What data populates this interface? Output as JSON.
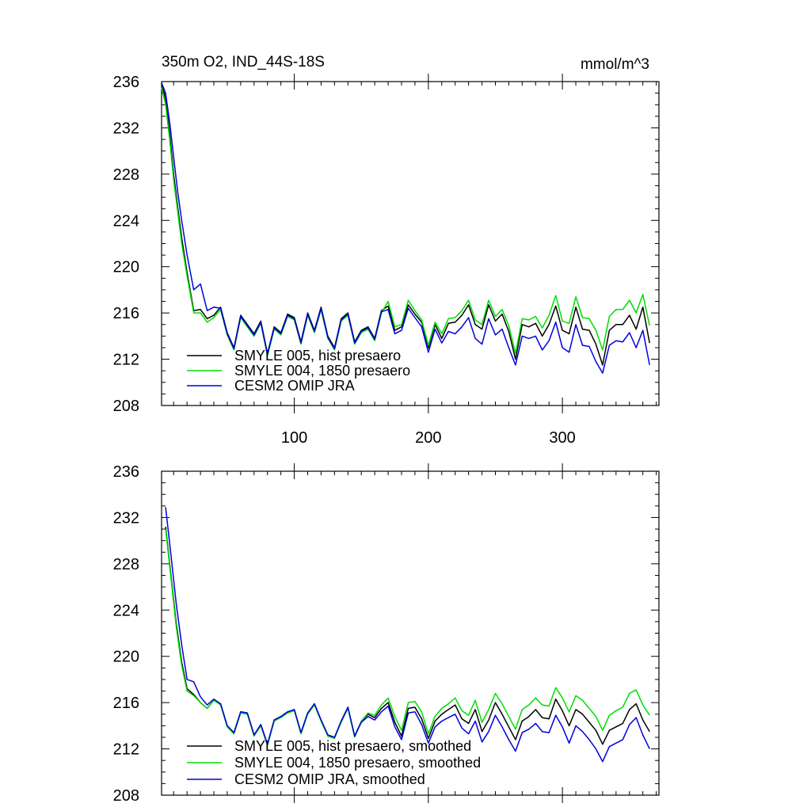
{
  "chart_data": [
    {
      "type": "line",
      "title": "350m O2, IND_44S-18S",
      "units": "mmol/m^3",
      "xlim": [
        1,
        372
      ],
      "ylim": [
        208,
        236
      ],
      "xticks": [
        100,
        200,
        300
      ],
      "yticks": [
        208,
        212,
        216,
        220,
        224,
        228,
        232,
        236
      ],
      "grid": false,
      "legend_position": "bottom-left",
      "series": [
        {
          "name": "SMYLE 005, hist presaero",
          "color": "#000000",
          "x": [
            1,
            4,
            7,
            10,
            13,
            16,
            20,
            25,
            30,
            35,
            40,
            45,
            50,
            55,
            60,
            65,
            70,
            75,
            80,
            85,
            90,
            95,
            100,
            105,
            110,
            115,
            120,
            125,
            130,
            135,
            140,
            145,
            150,
            155,
            160,
            165,
            170,
            175,
            180,
            185,
            190,
            195,
            200,
            205,
            210,
            215,
            220,
            225,
            230,
            235,
            240,
            245,
            250,
            255,
            260,
            265,
            270,
            275,
            280,
            285,
            290,
            295,
            300,
            305,
            310,
            315,
            320,
            325,
            330,
            335,
            340,
            345,
            350,
            355,
            360,
            365
          ],
          "y": [
            235.8,
            234.5,
            231.5,
            228,
            225.2,
            222.5,
            219.5,
            216.2,
            216.3,
            215.5,
            215.8,
            216.5,
            214.3,
            213,
            215.8,
            215,
            214.2,
            215.3,
            212.5,
            214.8,
            214.3,
            215.9,
            215.6,
            213.5,
            216,
            214.5,
            216.5,
            214,
            213,
            215.5,
            216,
            213.5,
            214.5,
            214.8,
            213.8,
            216.2,
            216.6,
            214.5,
            214.8,
            216.7,
            215.9,
            215.2,
            213,
            215,
            213.8,
            215.1,
            215.2,
            215.8,
            216.7,
            215,
            214.6,
            216.7,
            215.3,
            215.9,
            214.4,
            212,
            215,
            214.8,
            215.1,
            214,
            215,
            216.6,
            214.5,
            214.2,
            216.5,
            214.6,
            214.5,
            213.3,
            211.5,
            214.5,
            215,
            215,
            215.8,
            214.6,
            216.5,
            213.4
          ]
        },
        {
          "name": "SMYLE 004, 1850 presaero",
          "color": "#00dd00",
          "x": [
            1,
            4,
            7,
            10,
            13,
            16,
            20,
            25,
            30,
            35,
            40,
            45,
            50,
            55,
            60,
            65,
            70,
            75,
            80,
            85,
            90,
            95,
            100,
            105,
            110,
            115,
            120,
            125,
            130,
            135,
            140,
            145,
            150,
            155,
            160,
            165,
            170,
            175,
            180,
            185,
            190,
            195,
            200,
            205,
            210,
            215,
            220,
            225,
            230,
            235,
            240,
            245,
            250,
            255,
            260,
            265,
            270,
            275,
            280,
            285,
            290,
            295,
            300,
            305,
            310,
            315,
            320,
            325,
            330,
            335,
            340,
            345,
            350,
            355,
            360,
            365
          ],
          "y": [
            235.5,
            234,
            231,
            227.5,
            224.8,
            222,
            219.2,
            216,
            216,
            215.2,
            215.6,
            216.3,
            214.1,
            212.8,
            215.6,
            214.8,
            214,
            215.1,
            212.3,
            214.6,
            214.1,
            215.7,
            215.4,
            213.3,
            215.8,
            214.3,
            216.3,
            213.8,
            212.8,
            215.3,
            215.8,
            213.3,
            214.3,
            214.6,
            213.6,
            216,
            217,
            214.8,
            215,
            217.1,
            216.2,
            215.4,
            213.2,
            215.2,
            214.2,
            215.5,
            215.6,
            216.2,
            217.1,
            215.4,
            215,
            217.1,
            215.7,
            216.3,
            214.9,
            212.5,
            215.5,
            215.4,
            215.7,
            214.7,
            215.8,
            217.5,
            215.3,
            215.1,
            217.4,
            215.6,
            215.5,
            214.5,
            212.8,
            215.7,
            216.3,
            216.3,
            217.1,
            216,
            217.6,
            214.9
          ]
        },
        {
          "name": "CESM2 OMIP JRA",
          "color": "#0000dd",
          "x": [
            1,
            4,
            7,
            10,
            13,
            16,
            20,
            25,
            30,
            35,
            40,
            45,
            50,
            55,
            60,
            65,
            70,
            75,
            80,
            85,
            90,
            95,
            100,
            105,
            110,
            115,
            120,
            125,
            130,
            135,
            140,
            145,
            150,
            155,
            160,
            165,
            170,
            175,
            180,
            185,
            190,
            195,
            200,
            205,
            210,
            215,
            220,
            225,
            230,
            235,
            240,
            245,
            250,
            255,
            260,
            265,
            270,
            275,
            280,
            285,
            290,
            295,
            300,
            305,
            310,
            315,
            320,
            325,
            330,
            335,
            340,
            345,
            350,
            355,
            360,
            365
          ],
          "y": [
            235.9,
            235,
            232.5,
            229.5,
            226.5,
            224,
            221,
            218,
            218.5,
            216.2,
            216.5,
            216.4,
            214.2,
            212.9,
            215.7,
            214.9,
            214.1,
            215.2,
            212.4,
            214.7,
            214.2,
            215.8,
            215.5,
            213.4,
            215.9,
            214.4,
            216.4,
            213.9,
            212.9,
            215.4,
            215.9,
            213.4,
            214.4,
            214.7,
            213.7,
            216.1,
            216.3,
            214.2,
            214.5,
            216.4,
            215.6,
            214.8,
            212.6,
            214.6,
            213.4,
            214.4,
            214.2,
            214.8,
            215.6,
            213.8,
            213.3,
            215.5,
            214.1,
            214.6,
            213,
            211.5,
            214,
            213.8,
            214,
            212.8,
            213.6,
            215.2,
            213,
            212.6,
            215,
            213.2,
            213.1,
            211.8,
            210.8,
            213.2,
            213.6,
            213.5,
            214.3,
            213,
            214.5,
            211.5
          ]
        }
      ]
    },
    {
      "type": "line",
      "title": "",
      "xlim": [
        1,
        372
      ],
      "ylim": [
        208,
        236
      ],
      "xticks": [
        100,
        200,
        300
      ],
      "yticks": [
        208,
        212,
        216,
        220,
        224,
        228,
        232,
        236
      ],
      "grid": false,
      "legend_position": "bottom-left",
      "series": [
        {
          "name": "SMYLE 005, hist presaero, smoothed",
          "color": "#000000",
          "x": [
            4,
            8,
            12,
            16,
            20,
            25,
            30,
            35,
            40,
            45,
            50,
            55,
            60,
            65,
            70,
            75,
            80,
            85,
            90,
            95,
            100,
            105,
            110,
            115,
            120,
            125,
            130,
            135,
            140,
            145,
            150,
            155,
            160,
            165,
            170,
            175,
            180,
            185,
            190,
            195,
            200,
            205,
            210,
            215,
            220,
            225,
            230,
            235,
            240,
            245,
            250,
            255,
            260,
            265,
            270,
            275,
            280,
            285,
            290,
            295,
            300,
            305,
            310,
            315,
            320,
            325,
            330,
            335,
            340,
            345,
            350,
            355,
            360,
            365
          ],
          "y": [
            231.2,
            227,
            222.8,
            219.5,
            217.2,
            216.7,
            216,
            215.5,
            216.2,
            215.9,
            214,
            213.4,
            215.2,
            215.1,
            213.2,
            214.1,
            212.4,
            214.5,
            214.8,
            215.2,
            215.4,
            213.4,
            215.1,
            215.9,
            214.5,
            213.2,
            213,
            214.4,
            215.6,
            213.1,
            214.4,
            215,
            214.7,
            215.5,
            216,
            214.3,
            213.1,
            215.5,
            215.6,
            214.6,
            212.9,
            214.4,
            215,
            215.4,
            215.8,
            214.6,
            214.2,
            215.4,
            213.5,
            214.5,
            216,
            215,
            213.9,
            212.8,
            214.4,
            214.8,
            215.4,
            214.7,
            214.6,
            216.3,
            215.3,
            214,
            215.4,
            215,
            214.3,
            213.6,
            212.4,
            213.6,
            213.9,
            214.2,
            215.4,
            215.9,
            214.5,
            213.5
          ]
        },
        {
          "name": "SMYLE 004, 1850 presaero, smoothed",
          "color": "#00dd00",
          "x": [
            4,
            8,
            12,
            16,
            20,
            25,
            30,
            35,
            40,
            45,
            50,
            55,
            60,
            65,
            70,
            75,
            80,
            85,
            90,
            95,
            100,
            105,
            110,
            115,
            120,
            125,
            130,
            135,
            140,
            145,
            150,
            155,
            160,
            165,
            170,
            175,
            180,
            185,
            190,
            195,
            200,
            205,
            210,
            215,
            220,
            225,
            230,
            235,
            240,
            245,
            250,
            255,
            260,
            265,
            270,
            275,
            280,
            285,
            290,
            295,
            300,
            305,
            310,
            315,
            320,
            325,
            330,
            335,
            340,
            345,
            350,
            355,
            360,
            365
          ],
          "y": [
            231,
            226.8,
            222.5,
            219.2,
            217,
            216.6,
            216,
            215.5,
            216.2,
            215.8,
            213.9,
            213.3,
            215.1,
            215,
            213.1,
            214,
            212.3,
            214.4,
            214.7,
            215.1,
            215.3,
            213.3,
            215,
            215.8,
            214.4,
            213.1,
            212.9,
            214.3,
            215.5,
            213,
            214.4,
            215.1,
            214.9,
            215.8,
            216.4,
            214.8,
            213.6,
            216,
            216.1,
            215.2,
            213.3,
            214.8,
            215.5,
            215.9,
            216.4,
            215.3,
            214.9,
            216.2,
            214.3,
            215.4,
            216.8,
            215.9,
            214.8,
            213.7,
            215.4,
            215.8,
            216.4,
            215.8,
            215.7,
            217.3,
            216.4,
            215.2,
            216.6,
            216.2,
            215.5,
            214.8,
            213.6,
            214.9,
            215.3,
            215.6,
            216.8,
            217.1,
            215.8,
            214.9
          ]
        },
        {
          "name": "CESM2 OMIP JRA, smoothed",
          "color": "#0000dd",
          "x": [
            4,
            8,
            12,
            16,
            20,
            25,
            30,
            35,
            40,
            45,
            50,
            55,
            60,
            65,
            70,
            75,
            80,
            85,
            90,
            95,
            100,
            105,
            110,
            115,
            120,
            125,
            130,
            135,
            140,
            145,
            150,
            155,
            160,
            165,
            170,
            175,
            180,
            185,
            190,
            195,
            200,
            205,
            210,
            215,
            220,
            225,
            230,
            235,
            240,
            245,
            250,
            255,
            260,
            265,
            270,
            275,
            280,
            285,
            290,
            295,
            300,
            305,
            310,
            315,
            320,
            325,
            330,
            335,
            340,
            345,
            350,
            355,
            360,
            365
          ],
          "y": [
            232.9,
            228.8,
            224.5,
            221,
            218,
            217.8,
            216.5,
            215.8,
            216.3,
            215.9,
            214,
            213.4,
            215.2,
            215.1,
            213.2,
            214.1,
            212.4,
            214.5,
            214.8,
            215.2,
            215.4,
            213.4,
            215.1,
            215.9,
            214.5,
            213.2,
            213,
            214.4,
            215.6,
            213.1,
            214.3,
            214.8,
            214.5,
            215.2,
            215.7,
            213.9,
            212.8,
            215.1,
            215.2,
            214.1,
            212.5,
            213.9,
            214.4,
            214.7,
            215,
            213.8,
            213.3,
            214.4,
            212.6,
            213.5,
            214.9,
            213.9,
            212.8,
            211.8,
            213.4,
            213.7,
            214.2,
            213.5,
            213.4,
            214.9,
            213.9,
            212.5,
            214,
            213.5,
            212.8,
            212,
            210.9,
            212.2,
            212.5,
            212.8,
            214.1,
            214.7,
            213.2,
            212
          ]
        }
      ]
    }
  ]
}
